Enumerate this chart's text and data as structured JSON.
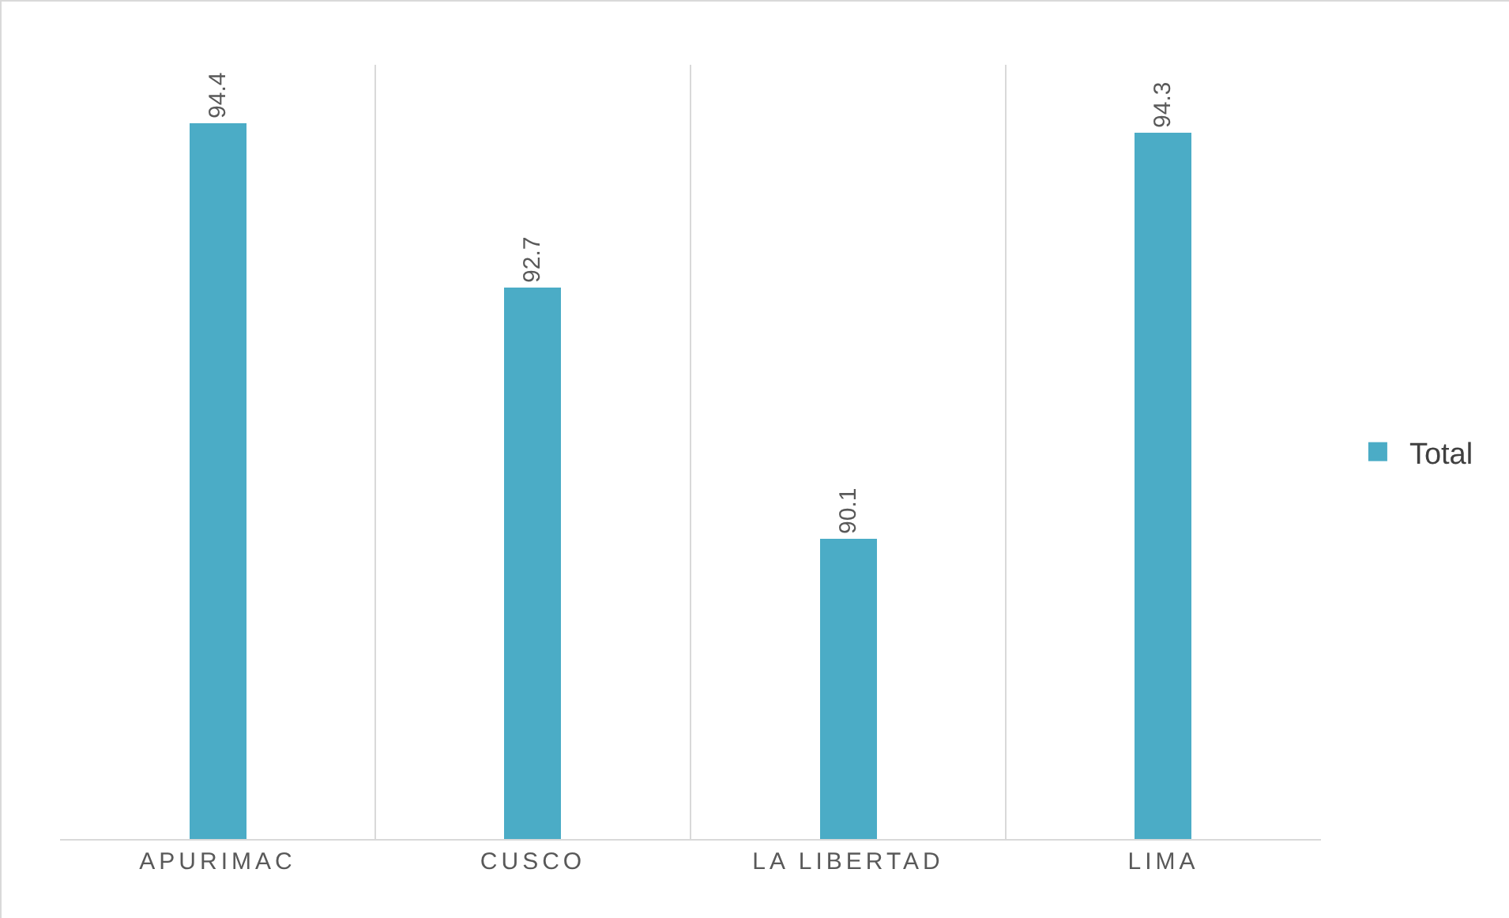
{
  "chart_data": {
    "type": "bar",
    "categories": [
      "APURIMAC",
      "CUSCO",
      "LA LIBERTAD",
      "LIMA"
    ],
    "series": [
      {
        "name": "Total",
        "color": "#4bacc6",
        "values": [
          94.4,
          92.7,
          90.1,
          94.3
        ]
      }
    ],
    "ylim": [
      87,
      95
    ],
    "data_labels": true,
    "grid": "x",
    "legend": "right",
    "tick_labels": "x"
  }
}
